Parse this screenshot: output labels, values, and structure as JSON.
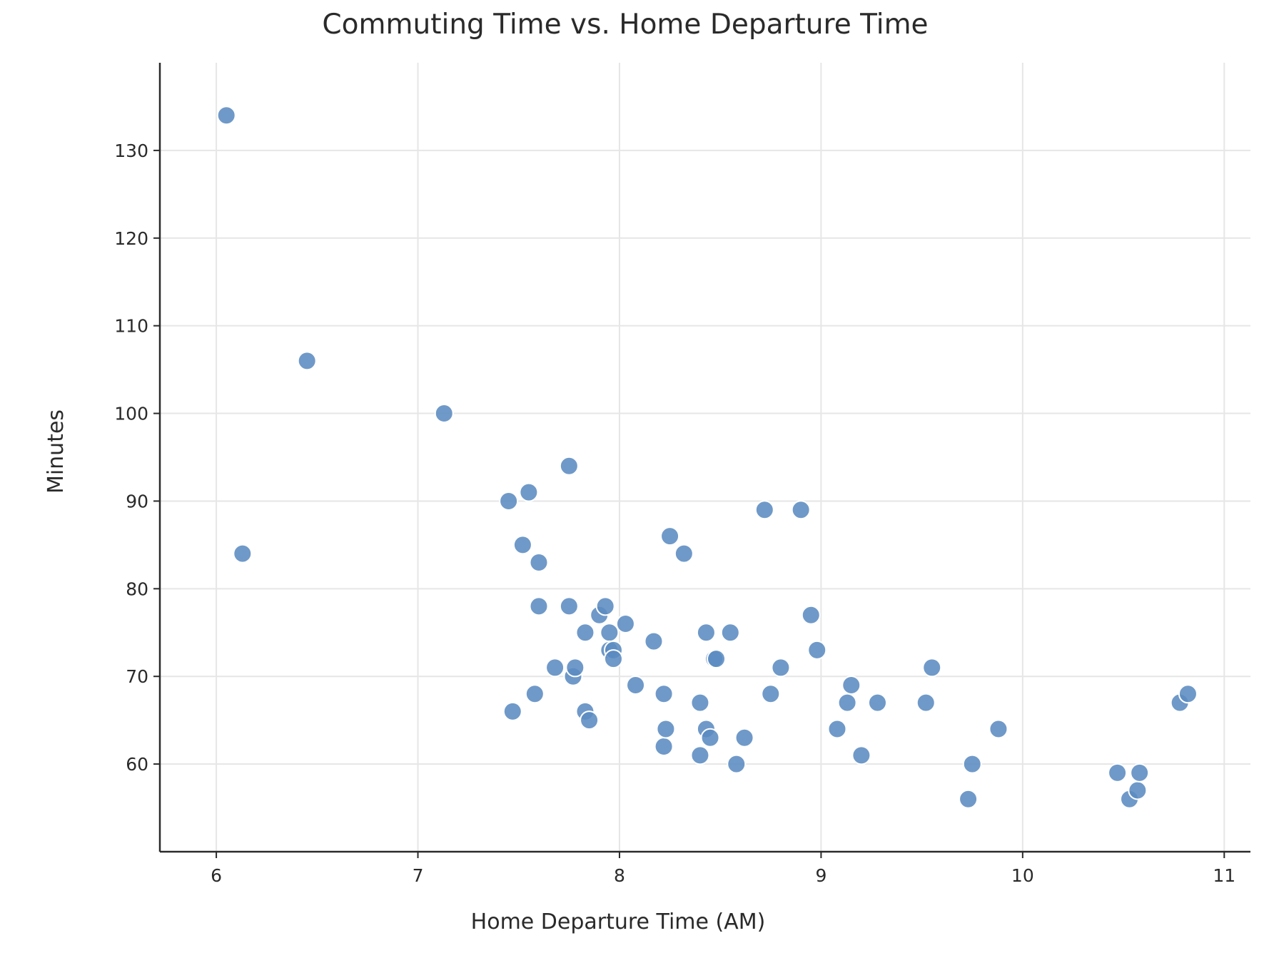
{
  "chart_data": {
    "type": "scatter",
    "title": "Commuting Time vs. Home Departure Time",
    "xlabel": "Home Departure Time (AM)",
    "ylabel": "Minutes",
    "xlim": [
      5.72,
      11.13
    ],
    "ylim": [
      50,
      140
    ],
    "xticks": [
      6,
      7,
      8,
      9,
      10,
      11
    ],
    "yticks": [
      60,
      70,
      80,
      90,
      100,
      110,
      120,
      130
    ],
    "grid": true,
    "marker_color": "#5b8bc0",
    "points": [
      {
        "x": 6.05,
        "y": 134
      },
      {
        "x": 6.13,
        "y": 84
      },
      {
        "x": 6.45,
        "y": 106
      },
      {
        "x": 7.13,
        "y": 100
      },
      {
        "x": 7.45,
        "y": 90
      },
      {
        "x": 7.47,
        "y": 66
      },
      {
        "x": 7.52,
        "y": 85
      },
      {
        "x": 7.55,
        "y": 91
      },
      {
        "x": 7.58,
        "y": 68
      },
      {
        "x": 7.6,
        "y": 83
      },
      {
        "x": 7.6,
        "y": 78
      },
      {
        "x": 7.68,
        "y": 71
      },
      {
        "x": 7.75,
        "y": 94
      },
      {
        "x": 7.75,
        "y": 78
      },
      {
        "x": 7.77,
        "y": 70
      },
      {
        "x": 7.78,
        "y": 71
      },
      {
        "x": 7.83,
        "y": 75
      },
      {
        "x": 7.83,
        "y": 66
      },
      {
        "x": 7.85,
        "y": 65
      },
      {
        "x": 7.9,
        "y": 77
      },
      {
        "x": 7.93,
        "y": 78
      },
      {
        "x": 7.95,
        "y": 75
      },
      {
        "x": 7.95,
        "y": 73
      },
      {
        "x": 7.97,
        "y": 73
      },
      {
        "x": 7.97,
        "y": 72
      },
      {
        "x": 8.03,
        "y": 76
      },
      {
        "x": 8.08,
        "y": 69
      },
      {
        "x": 8.17,
        "y": 74
      },
      {
        "x": 8.22,
        "y": 68
      },
      {
        "x": 8.22,
        "y": 62
      },
      {
        "x": 8.23,
        "y": 64
      },
      {
        "x": 8.25,
        "y": 86
      },
      {
        "x": 8.32,
        "y": 84
      },
      {
        "x": 8.4,
        "y": 67
      },
      {
        "x": 8.4,
        "y": 61
      },
      {
        "x": 8.43,
        "y": 75
      },
      {
        "x": 8.43,
        "y": 64
      },
      {
        "x": 8.45,
        "y": 63
      },
      {
        "x": 8.47,
        "y": 72
      },
      {
        "x": 8.48,
        "y": 72
      },
      {
        "x": 8.55,
        "y": 75
      },
      {
        "x": 8.58,
        "y": 60
      },
      {
        "x": 8.62,
        "y": 63
      },
      {
        "x": 8.72,
        "y": 89
      },
      {
        "x": 8.75,
        "y": 68
      },
      {
        "x": 8.8,
        "y": 71
      },
      {
        "x": 8.9,
        "y": 89
      },
      {
        "x": 8.95,
        "y": 77
      },
      {
        "x": 8.98,
        "y": 73
      },
      {
        "x": 9.08,
        "y": 64
      },
      {
        "x": 9.13,
        "y": 67
      },
      {
        "x": 9.15,
        "y": 69
      },
      {
        "x": 9.2,
        "y": 61
      },
      {
        "x": 9.28,
        "y": 67
      },
      {
        "x": 9.52,
        "y": 67
      },
      {
        "x": 9.55,
        "y": 71
      },
      {
        "x": 9.73,
        "y": 56
      },
      {
        "x": 9.75,
        "y": 60
      },
      {
        "x": 9.88,
        "y": 64
      },
      {
        "x": 10.47,
        "y": 59
      },
      {
        "x": 10.53,
        "y": 56
      },
      {
        "x": 10.57,
        "y": 57
      },
      {
        "x": 10.58,
        "y": 59
      },
      {
        "x": 10.78,
        "y": 67
      },
      {
        "x": 10.82,
        "y": 68
      }
    ]
  }
}
